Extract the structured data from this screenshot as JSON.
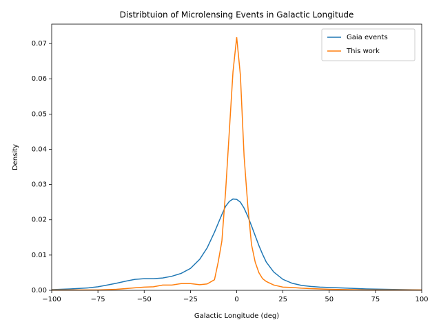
{
  "chart_data": {
    "type": "line",
    "title": "Distribtuion of Microlensing Events in Galactic Longitude",
    "xlabel": "Galactic Longitude (deg)",
    "ylabel": "Density",
    "x": [
      -100,
      -90,
      -80,
      -75,
      -70,
      -65,
      -60,
      -55,
      -50,
      -45,
      -40,
      -35,
      -30,
      -25,
      -20,
      -16,
      -12,
      -10,
      -8,
      -6,
      -4,
      -2,
      0,
      2,
      4,
      6,
      8,
      10,
      12,
      14,
      16,
      20,
      25,
      30,
      35,
      40,
      45,
      50,
      60,
      70,
      80,
      90,
      100
    ],
    "series": [
      {
        "name": "Gaia events",
        "color": "#1f77b4",
        "values": [
          0.0002,
          0.0004,
          0.0007,
          0.001,
          0.0015,
          0.002,
          0.0026,
          0.0031,
          0.0033,
          0.0033,
          0.0035,
          0.004,
          0.0048,
          0.0062,
          0.0088,
          0.012,
          0.0165,
          0.019,
          0.0215,
          0.0238,
          0.0252,
          0.0259,
          0.0258,
          0.025,
          0.0233,
          0.021,
          0.0183,
          0.0155,
          0.0127,
          0.0102,
          0.008,
          0.0052,
          0.0031,
          0.002,
          0.0014,
          0.0011,
          0.0009,
          0.0008,
          0.0006,
          0.0004,
          0.0003,
          0.0002,
          0.0001
        ]
      },
      {
        "name": "This work",
        "color": "#ff7f0e",
        "values": [
          0.0001,
          0.0001,
          0.0001,
          0.0001,
          0.0002,
          0.0003,
          0.0005,
          0.0007,
          0.0009,
          0.001,
          0.0015,
          0.0015,
          0.0019,
          0.0019,
          0.0016,
          0.0018,
          0.003,
          0.008,
          0.014,
          0.028,
          0.045,
          0.062,
          0.0718,
          0.061,
          0.038,
          0.024,
          0.013,
          0.008,
          0.005,
          0.0033,
          0.0025,
          0.0015,
          0.0009,
          0.0008,
          0.0006,
          0.0005,
          0.0004,
          0.0003,
          0.0002,
          0.0001,
          0.0001,
          0.0001,
          0.0001
        ]
      }
    ],
    "xlim": [
      -100,
      100
    ],
    "xticks": [
      {
        "value": -100,
        "label": "−100"
      },
      {
        "value": -75,
        "label": "−75"
      },
      {
        "value": -50,
        "label": "−50"
      },
      {
        "value": -25,
        "label": "−25"
      },
      0,
      25,
      50,
      75,
      100
    ],
    "ylim": [
      0,
      0.0755
    ],
    "yticks": [
      {
        "value": 0,
        "label": "0.00"
      },
      0.01,
      0.02,
      0.03,
      0.04,
      0.05,
      0.06,
      0.07
    ],
    "legend": "upper right",
    "grid": false
  }
}
